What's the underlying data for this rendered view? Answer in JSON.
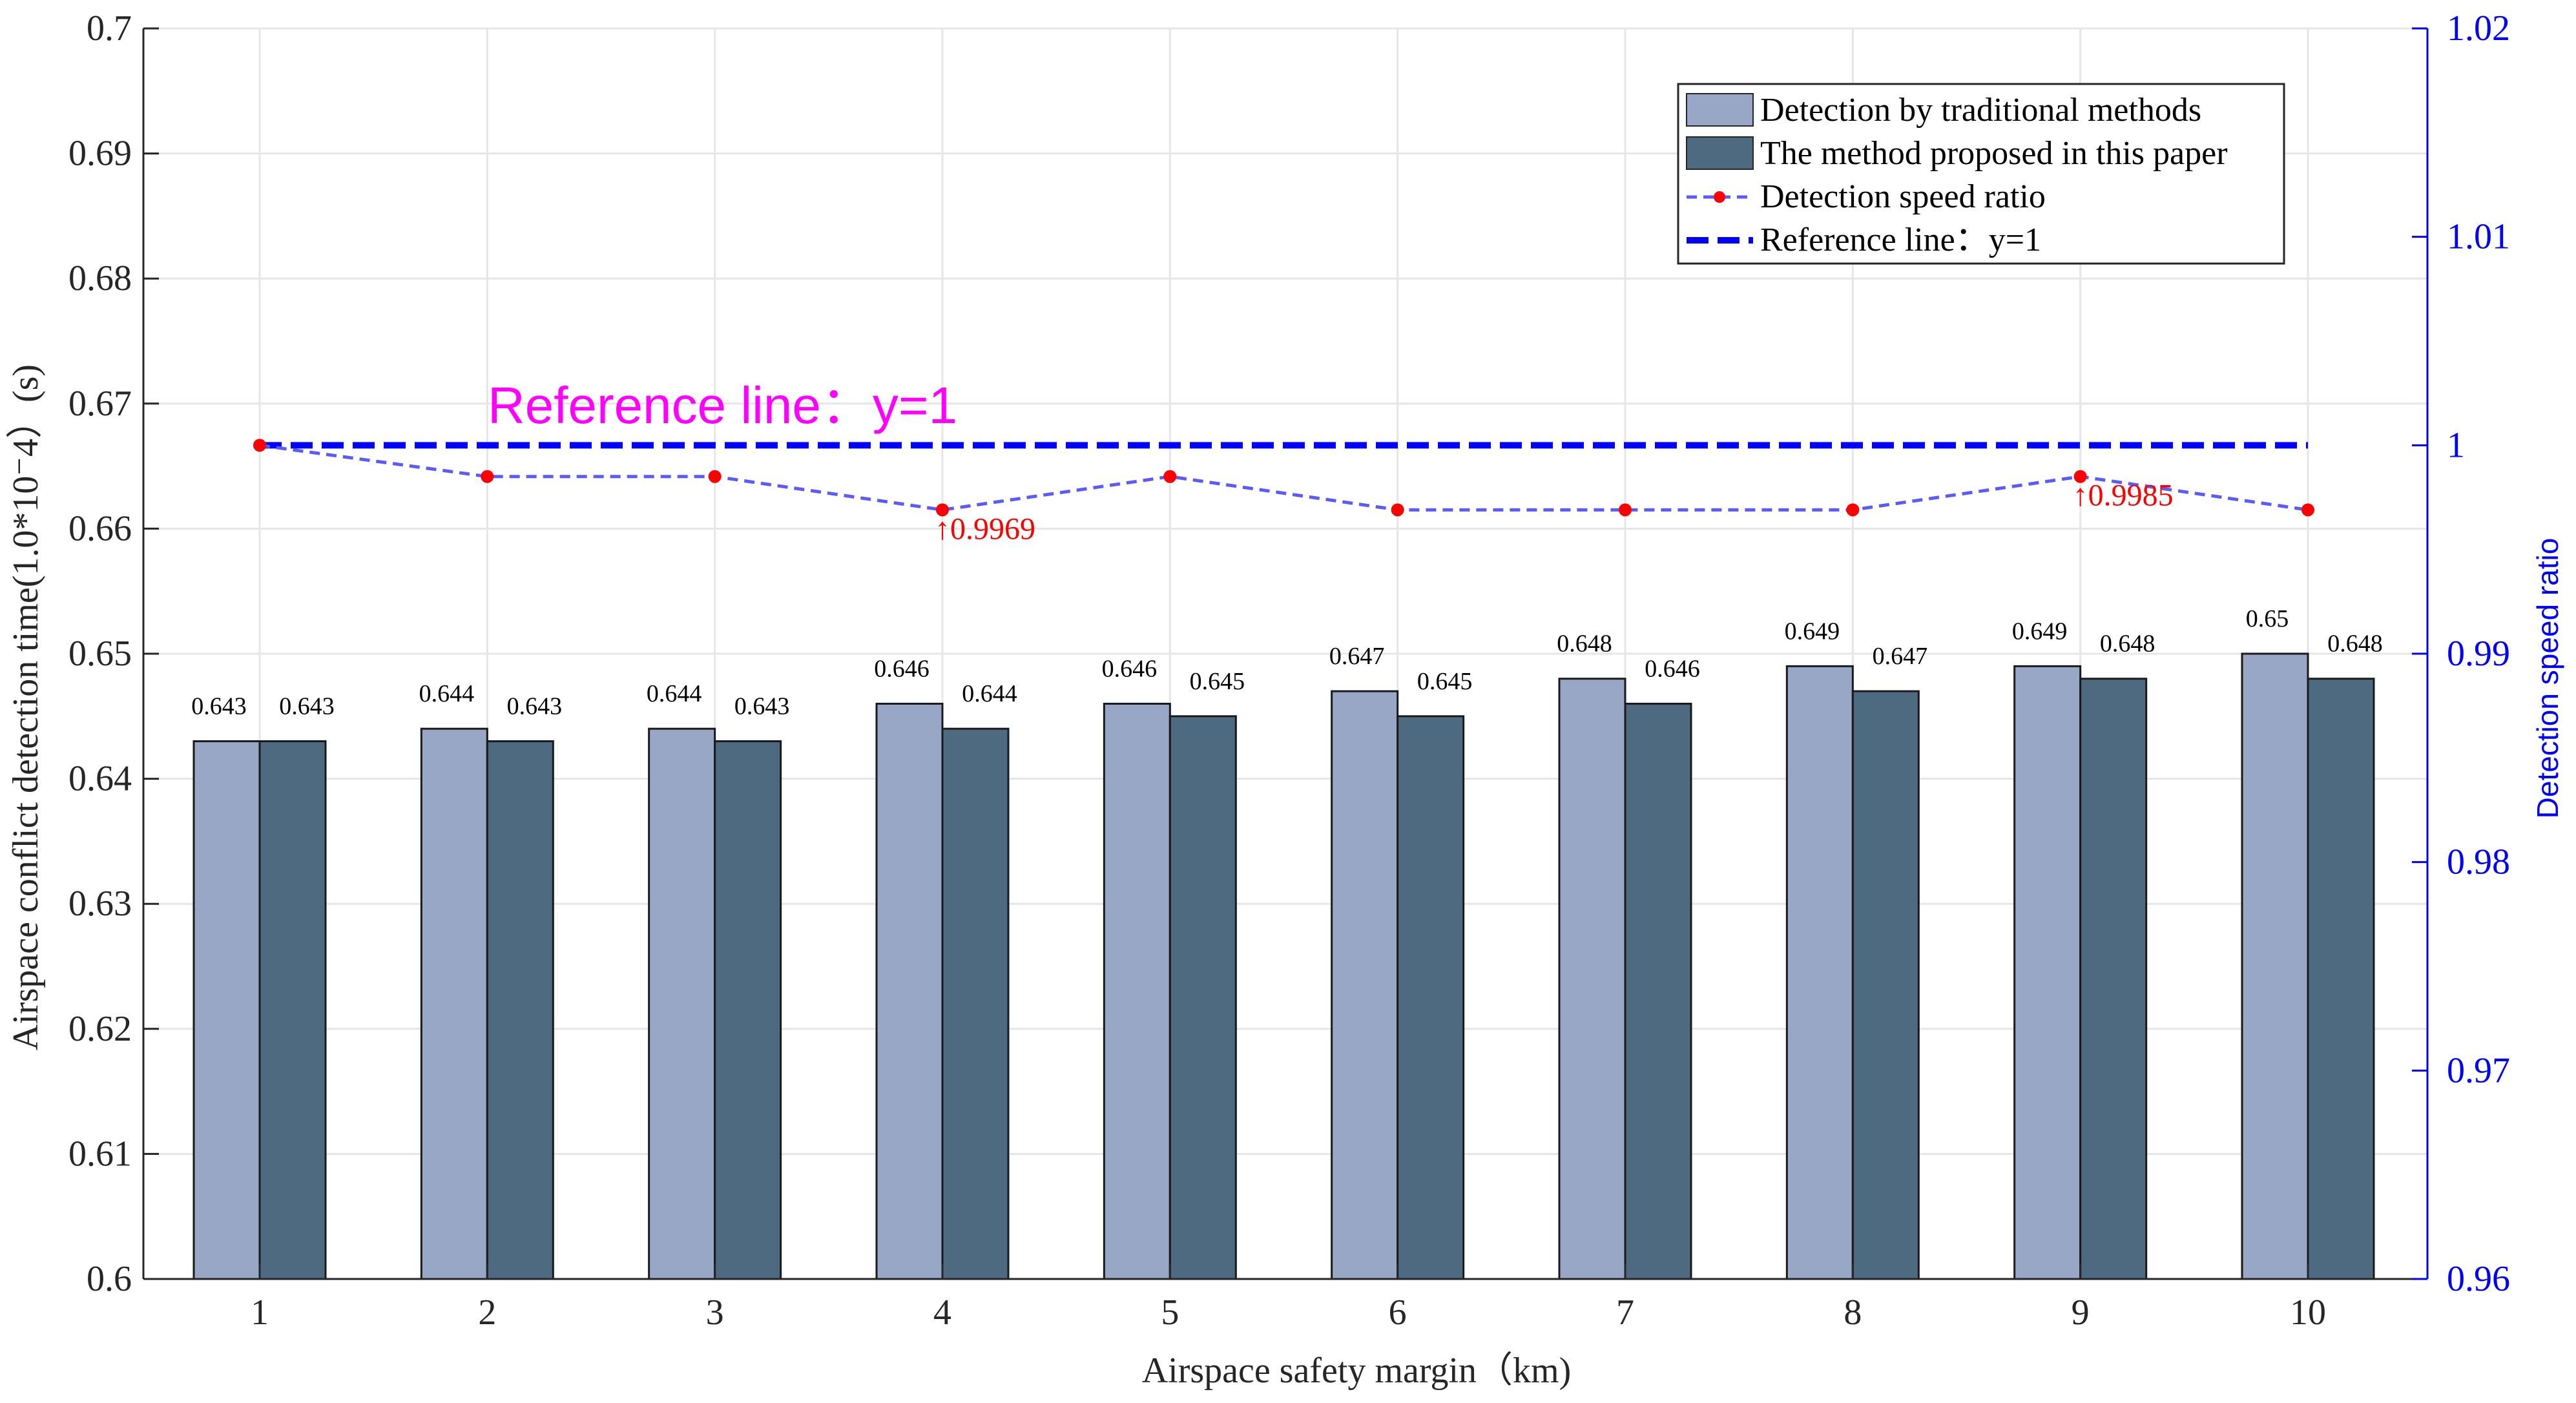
{
  "chart_data": {
    "type": "bar",
    "title": "",
    "xlabel": "Airspace safety margin（km)",
    "ylabel": "Airspace conflict detection time(1.0*10⁻4）(s)",
    "y2label": "Detection speed ratio",
    "categories": [
      "1",
      "2",
      "3",
      "4",
      "5",
      "6",
      "7",
      "8",
      "9",
      "10"
    ],
    "ylim": [
      0.6,
      0.7
    ],
    "yticks": [
      "0.6",
      "0.61",
      "0.62",
      "0.63",
      "0.64",
      "0.65",
      "0.66",
      "0.67",
      "0.68",
      "0.69",
      "0.7"
    ],
    "y2lim": [
      0.96,
      1.02
    ],
    "y2ticks": [
      "0.96",
      "0.97",
      "0.98",
      "0.99",
      "1",
      "1.01",
      "1.02"
    ],
    "grid": true,
    "series": [
      {
        "name": "Detection by traditional methods",
        "axis": "left",
        "color": "#97a7c5",
        "values": [
          0.643,
          0.644,
          0.644,
          0.646,
          0.646,
          0.647,
          0.648,
          0.649,
          0.649,
          0.65
        ],
        "labels": [
          "0.643",
          "0.644",
          "0.644",
          "0.646",
          "0.646",
          "0.647",
          "0.648",
          "0.649",
          "0.649",
          "0.65"
        ]
      },
      {
        "name": "The method proposed in this paper",
        "axis": "left",
        "color": "#4e6a80",
        "values": [
          0.643,
          0.643,
          0.643,
          0.644,
          0.645,
          0.645,
          0.646,
          0.647,
          0.648,
          0.648
        ],
        "labels": [
          "0.643",
          "0.643",
          "0.643",
          "0.644",
          "0.645",
          "0.645",
          "0.646",
          "0.647",
          "0.648",
          "0.648"
        ]
      },
      {
        "name": "Detection speed ratio",
        "axis": "right",
        "type": "line",
        "color": "#5a5aff",
        "marker_color": "#ff0000",
        "values": [
          1.0,
          0.9985,
          0.9985,
          0.9969,
          0.9985,
          0.9969,
          0.9969,
          0.9969,
          0.9985,
          0.9969
        ]
      },
      {
        "name": "Reference line：y=1",
        "axis": "right",
        "type": "line",
        "color": "#0000ff",
        "values": [
          1,
          1,
          1,
          1,
          1,
          1,
          1,
          1,
          1,
          1
        ]
      }
    ],
    "annotations": [
      {
        "text": "↑0.9969",
        "category_index": 3,
        "value": 0.9969
      },
      {
        "text": "↑0.9985",
        "category_index": 8,
        "value": 0.9985
      }
    ],
    "reference_annotation": "Reference line：y=1",
    "legend_position": "top-right"
  },
  "colors": {
    "axis": "#262626",
    "right_axis": "#0000ff",
    "grid": "#e6e6e6"
  }
}
